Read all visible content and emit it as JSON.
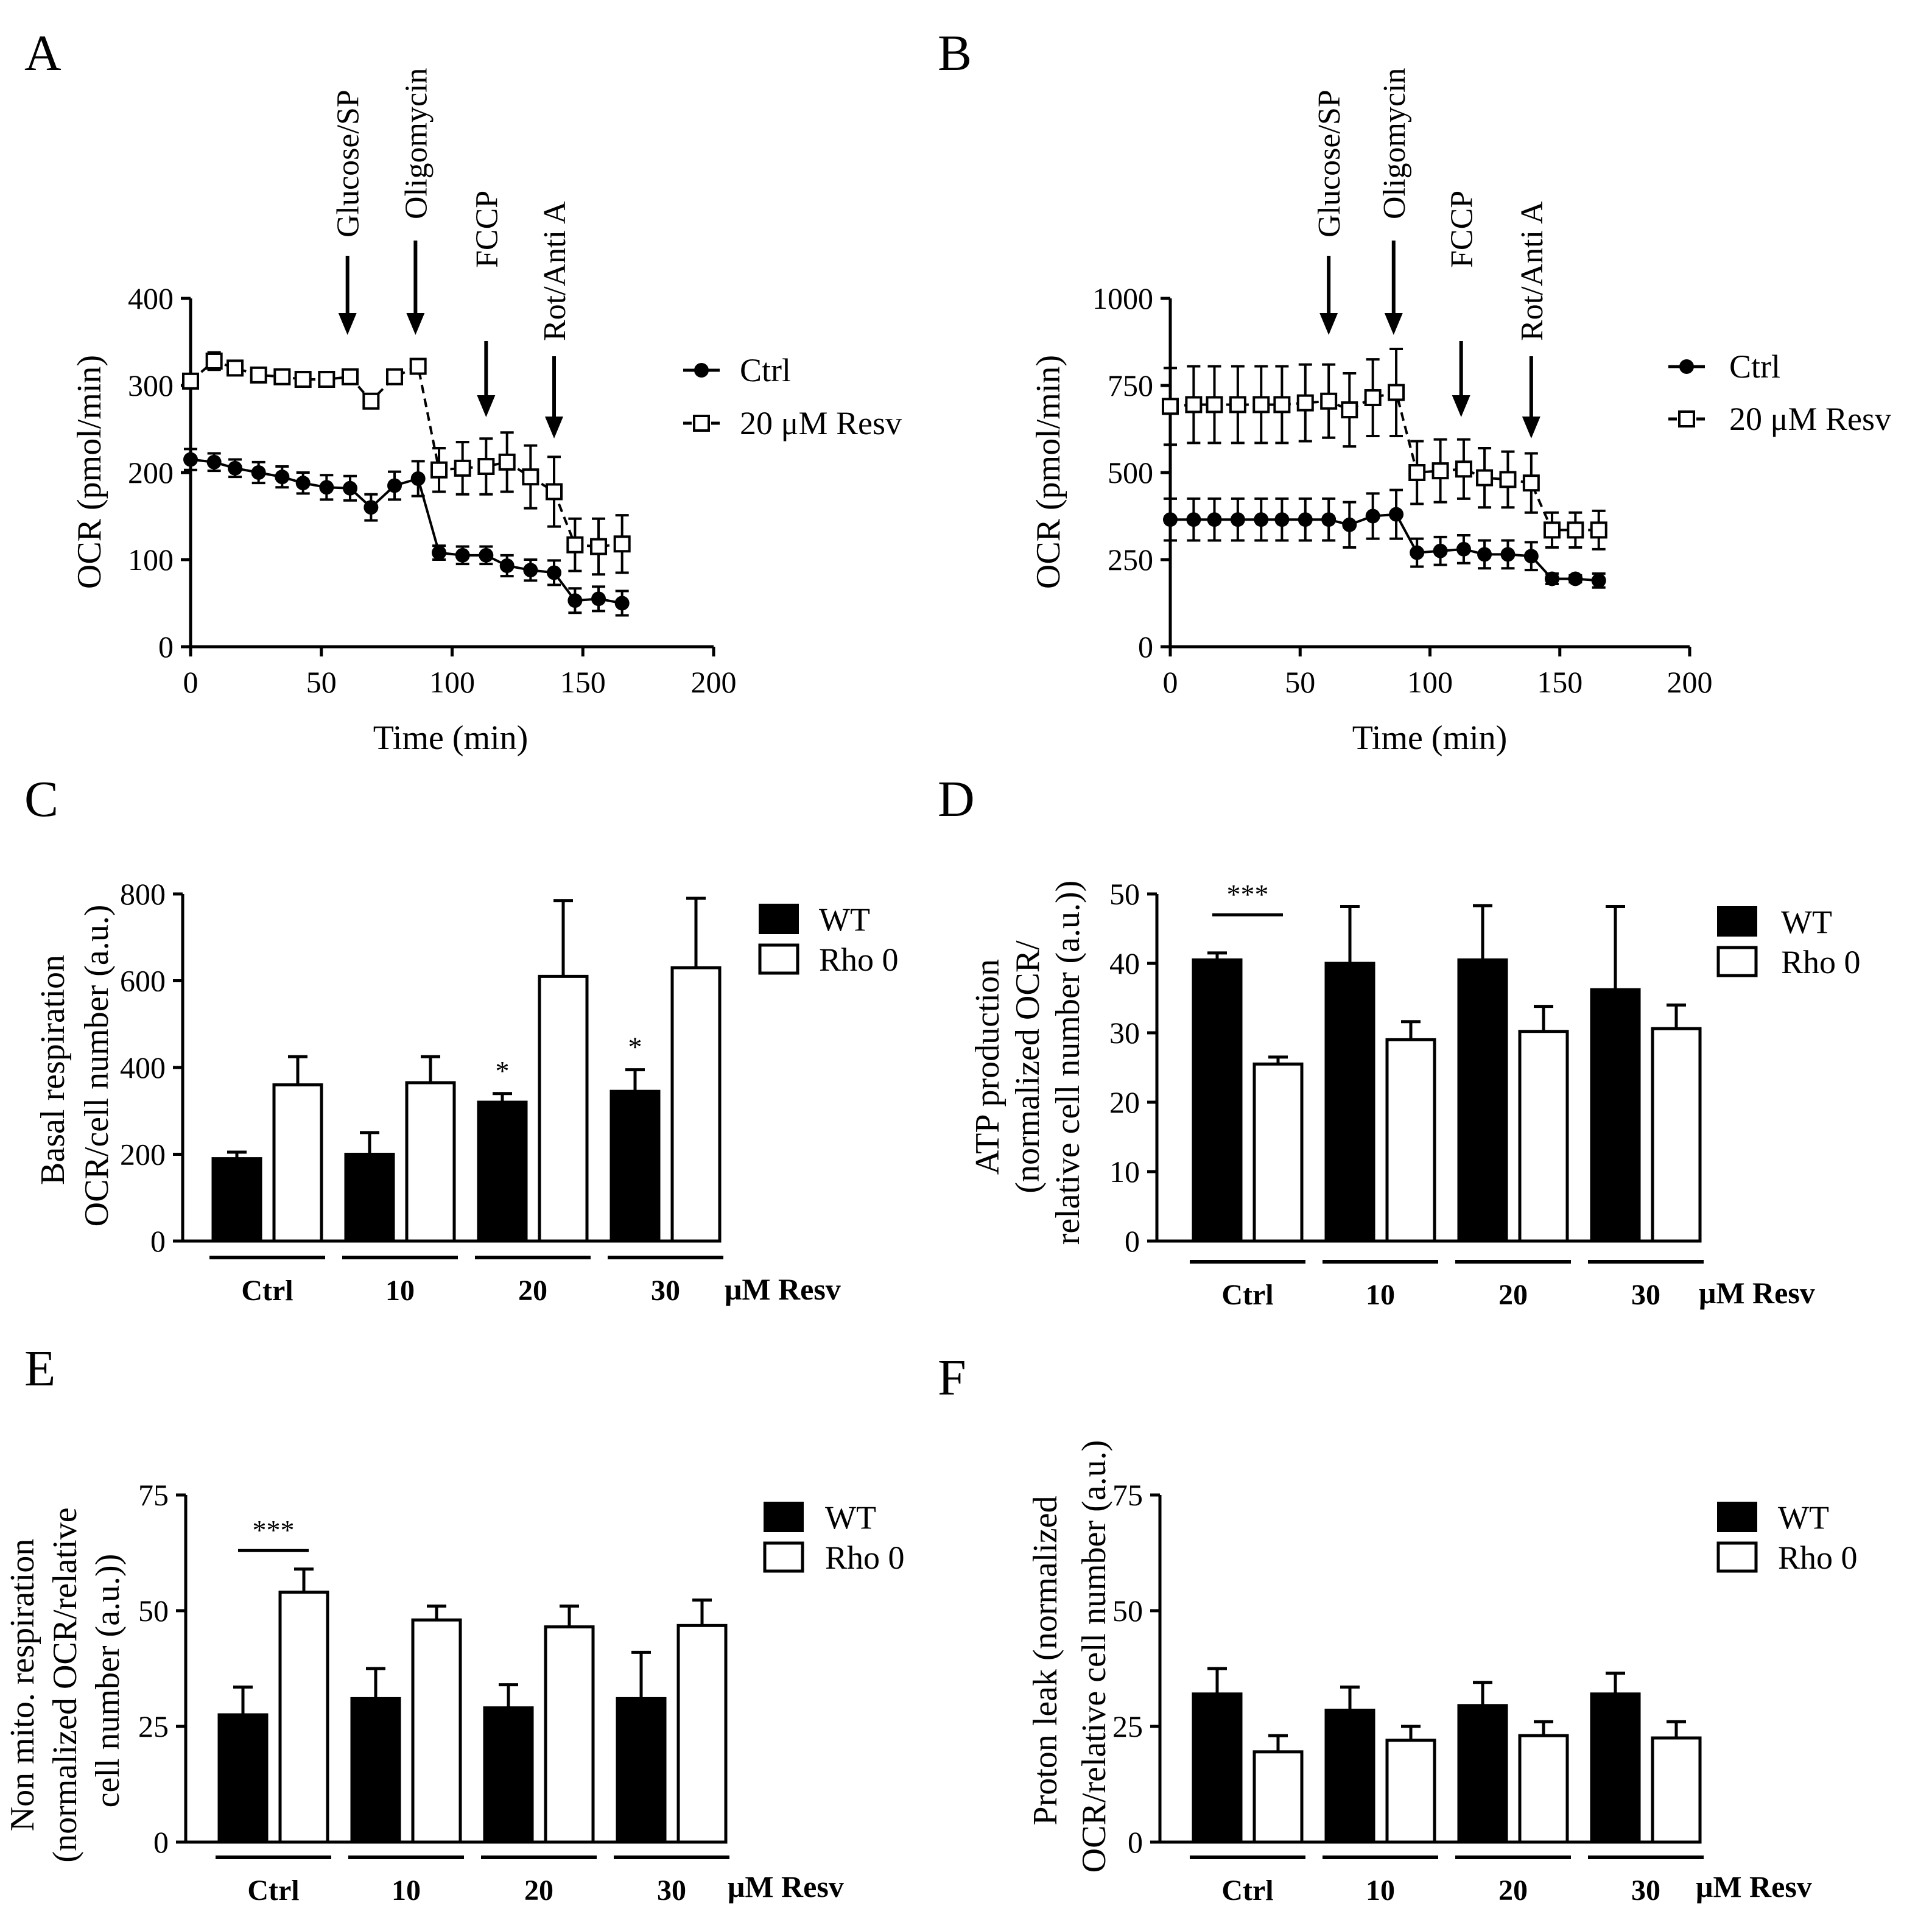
{
  "chart_data": [
    {
      "id": "A",
      "panel_label": "A",
      "type": "line",
      "xlabel": "Time (min)",
      "ylabel": "OCR (pmol/min)",
      "xlim": [
        0,
        200
      ],
      "ylim": [
        0,
        400
      ],
      "xticks": [
        0,
        50,
        100,
        150,
        200
      ],
      "yticks": [
        0,
        100,
        200,
        300,
        400
      ],
      "annotations": [
        {
          "label": "Glucose/SP",
          "x": 60
        },
        {
          "label": "Oligomycin",
          "x": 86
        },
        {
          "label": "FCCP",
          "x": 113
        },
        {
          "label": "Rot/Anti A",
          "x": 139
        }
      ],
      "series": [
        {
          "name": "Ctrl",
          "style": "solid-filled-circle",
          "x": [
            0,
            9,
            17,
            26,
            35,
            43,
            52,
            61,
            69,
            78,
            87,
            95,
            104,
            113,
            121,
            130,
            139,
            147,
            156,
            165
          ],
          "y": [
            215,
            212,
            205,
            200,
            195,
            188,
            183,
            182,
            160,
            185,
            193,
            108,
            105,
            105,
            93,
            88,
            85,
            53,
            55,
            50
          ],
          "err": [
            12,
            10,
            10,
            12,
            12,
            12,
            14,
            14,
            15,
            16,
            20,
            8,
            10,
            10,
            12,
            12,
            14,
            14,
            14,
            14
          ]
        },
        {
          "name": "20 μM Resv",
          "style": "dashed-open-square",
          "x": [
            0,
            9,
            17,
            26,
            35,
            43,
            52,
            61,
            69,
            78,
            87,
            95,
            104,
            113,
            121,
            130,
            139,
            147,
            156,
            165
          ],
          "y": [
            305,
            328,
            320,
            312,
            310,
            307,
            307,
            310,
            282,
            310,
            322,
            203,
            205,
            207,
            212,
            195,
            178,
            117,
            115,
            118
          ],
          "err": [
            6,
            10,
            6,
            5,
            5,
            5,
            5,
            5,
            8,
            6,
            6,
            25,
            30,
            32,
            34,
            36,
            40,
            30,
            32,
            33
          ]
        }
      ]
    },
    {
      "id": "B",
      "panel_label": "B",
      "type": "line",
      "xlabel": "Time (min)",
      "ylabel": "OCR (pmol/min)",
      "xlim": [
        0,
        200
      ],
      "ylim": [
        0,
        1000
      ],
      "xticks": [
        0,
        50,
        100,
        150,
        200
      ],
      "yticks": [
        0,
        250,
        500,
        750,
        1000
      ],
      "annotations": [
        {
          "label": "Glucose/SP",
          "x": 61
        },
        {
          "label": "Oligomycin",
          "x": 86
        },
        {
          "label": "FCCP",
          "x": 112
        },
        {
          "label": "Rot/Anti A",
          "x": 139
        }
      ],
      "series": [
        {
          "name": "Ctrl",
          "style": "solid-filled-circle",
          "x": [
            0,
            9,
            17,
            26,
            35,
            43,
            52,
            61,
            69,
            78,
            87,
            95,
            104,
            113,
            121,
            130,
            139,
            147,
            156,
            165
          ],
          "y": [
            365,
            365,
            365,
            365,
            365,
            365,
            365,
            365,
            350,
            375,
            380,
            270,
            275,
            280,
            265,
            265,
            260,
            195,
            195,
            190
          ],
          "err": [
            60,
            60,
            60,
            60,
            60,
            60,
            60,
            60,
            65,
            65,
            70,
            40,
            40,
            40,
            40,
            40,
            40,
            15,
            10,
            20
          ]
        },
        {
          "name": "20 μM Resv",
          "style": "dashed-open-square",
          "x": [
            0,
            9,
            17,
            26,
            35,
            43,
            52,
            61,
            69,
            78,
            87,
            95,
            104,
            113,
            121,
            130,
            139,
            147,
            156,
            165
          ],
          "y": [
            690,
            695,
            695,
            695,
            695,
            695,
            700,
            705,
            680,
            715,
            730,
            500,
            505,
            510,
            485,
            480,
            470,
            335,
            335,
            335
          ],
          "err": [
            110,
            110,
            110,
            110,
            110,
            110,
            110,
            105,
            105,
            110,
            125,
            90,
            90,
            85,
            85,
            80,
            85,
            50,
            50,
            55
          ]
        }
      ]
    },
    {
      "id": "C",
      "panel_label": "C",
      "type": "bar",
      "ylabel_lines": [
        "Basal respiration",
        "OCR/cell number (a.u.)"
      ],
      "ylim": [
        0,
        800
      ],
      "yticks": [
        0,
        200,
        400,
        600,
        800
      ],
      "categories": [
        "Ctrl",
        "10",
        "20",
        "30"
      ],
      "unit_label": "μM Resv",
      "series": [
        {
          "name": "WT",
          "fill": "#000000",
          "values": [
            190,
            200,
            320,
            345
          ],
          "err": [
            15,
            50,
            20,
            50
          ]
        },
        {
          "name": "Rho 0",
          "fill": "#ffffff",
          "values": [
            360,
            365,
            610,
            630
          ],
          "err": [
            65,
            60,
            175,
            160
          ]
        }
      ],
      "significance": [
        {
          "category": "20",
          "series": "WT",
          "label": "*"
        },
        {
          "category": "30",
          "series": "WT",
          "label": "*"
        }
      ]
    },
    {
      "id": "D",
      "panel_label": "D",
      "type": "bar",
      "ylabel_lines": [
        "ATP production",
        "(normalized OCR/",
        "relative cell number (a.u.))"
      ],
      "ylim": [
        0,
        50
      ],
      "yticks": [
        0,
        10,
        20,
        30,
        40,
        50
      ],
      "categories": [
        "Ctrl",
        "10",
        "20",
        "30"
      ],
      "unit_label": "μM Resv",
      "series": [
        {
          "name": "WT",
          "fill": "#000000",
          "values": [
            40.5,
            40,
            40.5,
            36.2
          ],
          "err": [
            1,
            8.2,
            7.8,
            12
          ]
        },
        {
          "name": "Rho 0",
          "fill": "#ffffff",
          "values": [
            25.5,
            29,
            30.2,
            30.6
          ],
          "err": [
            1,
            2.6,
            3.6,
            3.4
          ]
        }
      ],
      "significance_bracket": {
        "category": "Ctrl",
        "label": "***",
        "level": 47
      }
    },
    {
      "id": "E",
      "panel_label": "E",
      "type": "bar",
      "ylabel_lines": [
        "Non mito. respiration",
        "(normalized OCR/relative",
        "cell number  (a.u.))"
      ],
      "ylim": [
        0,
        75
      ],
      "yticks": [
        0,
        25,
        50,
        75
      ],
      "categories": [
        "Ctrl",
        "10",
        "20",
        "30"
      ],
      "unit_label": "μM Resv",
      "series": [
        {
          "name": "WT",
          "fill": "#000000",
          "values": [
            27.5,
            31,
            29,
            31
          ],
          "err": [
            6,
            6.5,
            5,
            10
          ]
        },
        {
          "name": "Rho 0",
          "fill": "#ffffff",
          "values": [
            54,
            48,
            46.5,
            46.8
          ],
          "err": [
            5,
            3,
            4.5,
            5.5
          ]
        }
      ],
      "significance_bracket": {
        "category": "Ctrl",
        "label": "***",
        "level": 63
      }
    },
    {
      "id": "F",
      "panel_label": "F",
      "type": "bar",
      "ylabel_lines": [
        "Proton leak (normalized",
        "OCR/relative cell number (a.u.)"
      ],
      "ylim": [
        0,
        75
      ],
      "yticks": [
        0,
        25,
        50,
        75
      ],
      "categories": [
        "Ctrl",
        "10",
        "20",
        "30"
      ],
      "unit_label": "μM Resv",
      "series": [
        {
          "name": "WT",
          "fill": "#000000",
          "values": [
            32,
            28.5,
            29.5,
            32
          ],
          "err": [
            5.5,
            5,
            5,
            4.5
          ]
        },
        {
          "name": "Rho 0",
          "fill": "#ffffff",
          "values": [
            19.5,
            22,
            23,
            22.5
          ],
          "err": [
            3.5,
            3,
            3,
            3.5
          ]
        }
      ]
    }
  ]
}
